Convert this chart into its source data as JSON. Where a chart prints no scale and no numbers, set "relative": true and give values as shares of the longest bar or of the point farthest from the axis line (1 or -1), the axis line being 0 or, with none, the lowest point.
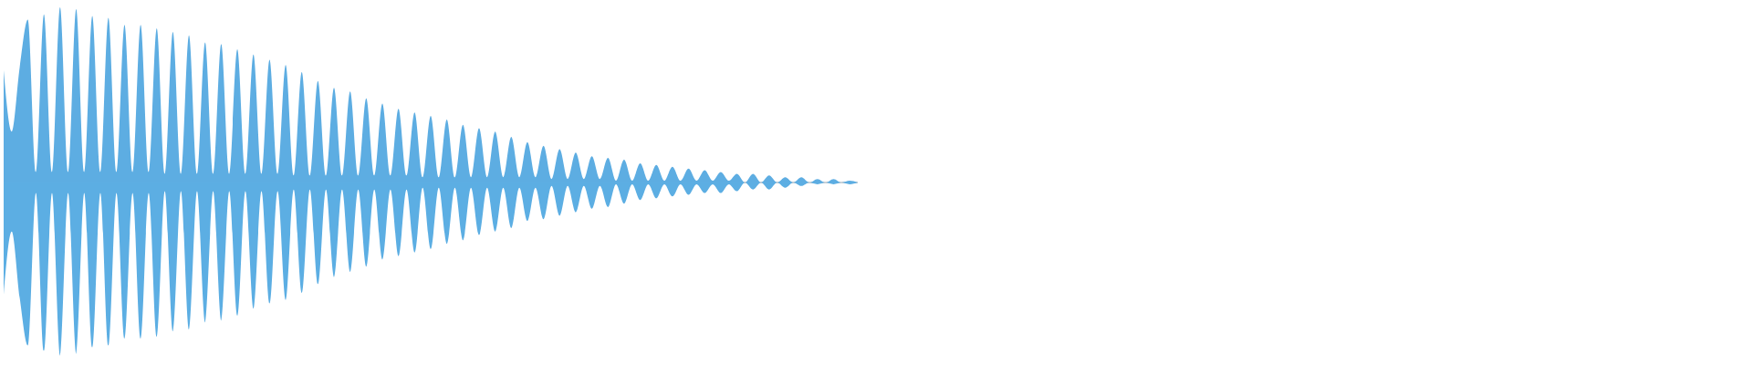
{
  "chart_data": {
    "type": "area",
    "relative": true,
    "categories": [
      null,
      null,
      null,
      null,
      null,
      null,
      null,
      null,
      null,
      null,
      null,
      null,
      null,
      null,
      null,
      null,
      null,
      null,
      null,
      null,
      null,
      null,
      null,
      null,
      null,
      null,
      null,
      null,
      null,
      null,
      null,
      null,
      null,
      null,
      null,
      null,
      null,
      null,
      null,
      null,
      null,
      null,
      null,
      null,
      null,
      null,
      null,
      null,
      null,
      null,
      null,
      null,
      null,
      null,
      null,
      null,
      null,
      null,
      null,
      null,
      null,
      null,
      null,
      null,
      null,
      null,
      null,
      null,
      null,
      null,
      null,
      null,
      null,
      null,
      null,
      null,
      null,
      null,
      null,
      null,
      null,
      null,
      null,
      null,
      null,
      null,
      null,
      null,
      null,
      null,
      null,
      null,
      null,
      null,
      null,
      null,
      null,
      null,
      null,
      null,
      null,
      null,
      null,
      null,
      null,
      null,
      null
    ],
    "series": [
      {
        "color": "#5dade2",
        "values": [
          0.64,
          0.29,
          0.66,
          0.93,
          0.06,
          0.96,
          0.06,
          1.0,
          0.06,
          0.99,
          0.06,
          0.95,
          0.06,
          0.94,
          0.06,
          0.9,
          0.06,
          0.9,
          0.06,
          0.88,
          0.05,
          0.86,
          0.05,
          0.84,
          0.05,
          0.8,
          0.05,
          0.79,
          0.05,
          0.76,
          0.05,
          0.73,
          0.05,
          0.7,
          0.05,
          0.67,
          0.04,
          0.63,
          0.04,
          0.58,
          0.04,
          0.54,
          0.04,
          0.52,
          0.04,
          0.48,
          0.04,
          0.45,
          0.04,
          0.42,
          0.04,
          0.4,
          0.03,
          0.38,
          0.03,
          0.36,
          0.03,
          0.33,
          0.03,
          0.31,
          0.03,
          0.29,
          0.03,
          0.26,
          0.03,
          0.23,
          0.03,
          0.21,
          0.02,
          0.19,
          0.02,
          0.17,
          0.02,
          0.15,
          0.02,
          0.14,
          0.01,
          0.13,
          0.01,
          0.11,
          0.01,
          0.1,
          0.01,
          0.09,
          0.01,
          0.08,
          0.01,
          0.07,
          0.01,
          0.06,
          0.01,
          0.05,
          0,
          0.05,
          0,
          0.04,
          0,
          0.03,
          0,
          0.03,
          0,
          0.02,
          0,
          0.02,
          0,
          0.01,
          0
        ]
      },
      {
        "color": "#5caee3",
        "values": [
          -0.64,
          -0.28,
          -0.66,
          -0.93,
          -0.06,
          -0.96,
          -0.06,
          -0.99,
          -0.06,
          -0.98,
          -0.06,
          -0.94,
          -0.06,
          -0.93,
          -0.06,
          -0.89,
          -0.06,
          -0.89,
          -0.06,
          -0.88,
          -0.05,
          -0.85,
          -0.05,
          -0.84,
          -0.05,
          -0.8,
          -0.05,
          -0.79,
          -0.05,
          -0.76,
          -0.05,
          -0.72,
          -0.05,
          -0.69,
          -0.05,
          -0.67,
          -0.04,
          -0.63,
          -0.04,
          -0.58,
          -0.04,
          -0.54,
          -0.04,
          -0.51,
          -0.04,
          -0.48,
          -0.04,
          -0.44,
          -0.04,
          -0.42,
          -0.04,
          -0.4,
          -0.03,
          -0.38,
          -0.03,
          -0.35,
          -0.03,
          -0.33,
          -0.03,
          -0.3,
          -0.03,
          -0.28,
          -0.03,
          -0.26,
          -0.03,
          -0.22,
          -0.03,
          -0.21,
          -0.02,
          -0.19,
          -0.02,
          -0.17,
          -0.02,
          -0.15,
          -0.02,
          -0.14,
          -0.01,
          -0.12,
          -0.01,
          -0.1,
          -0.01,
          -0.09,
          -0.01,
          -0.08,
          -0.01,
          -0.07,
          -0.01,
          -0.06,
          -0.01,
          -0.06,
          -0.01,
          -0.05,
          0,
          -0.04,
          0,
          -0.04,
          0,
          -0.03,
          0,
          -0.02,
          0,
          -0.01,
          0,
          -0.01,
          0,
          -0.01,
          0
        ]
      }
    ]
  }
}
